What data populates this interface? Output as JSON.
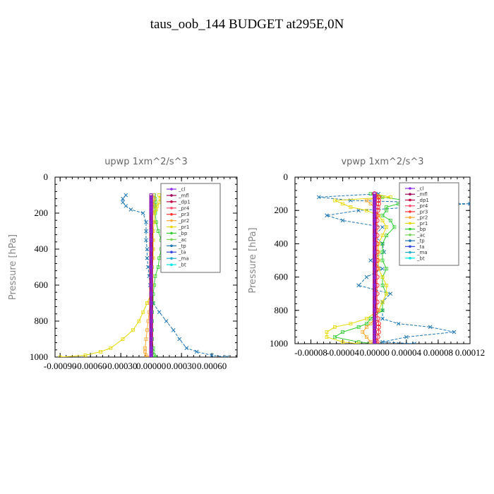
{
  "title": "taus_oob_144  BUDGET at295E,0N",
  "chart_data": [
    {
      "type": "line",
      "title": "upwp   1xm^2/s^3",
      "ylabel": "Pressure [hPa]",
      "xlabel": "",
      "xlim": [
        -0.00095,
        0.00085
      ],
      "ylim": [
        1000,
        0
      ],
      "xticks": [
        "-0.00090",
        "-0.00060",
        "-0.00030",
        "0.00000",
        "0.00030",
        "0.00060"
      ],
      "xtick_values": [
        -0.0009,
        -0.0006,
        -0.0003,
        0,
        0.0003,
        0.0006
      ],
      "yticks": [
        "0",
        "200",
        "400",
        "600",
        "800",
        "1000"
      ],
      "ytick_values": [
        0,
        200,
        400,
        600,
        800,
        1000
      ],
      "legend": [
        "_cl",
        "_mfl",
        "_dp1",
        "_pr4",
        "_pr3",
        "_pr2",
        "_pr1",
        "_bp",
        "_ac",
        "_tp",
        "_ta",
        "_ma",
        "_bt"
      ],
      "legend_placement": "top-right",
      "p": [
        100,
        120,
        140,
        160,
        180,
        200,
        250,
        300,
        350,
        400,
        450,
        500,
        550,
        600,
        650,
        700,
        750,
        800,
        850,
        900,
        950,
        970,
        990,
        1000
      ],
      "series": [
        {
          "name": "_tp",
          "color": "#1f77b4",
          "values": [
            -0.00025,
            -0.00028,
            -0.00028,
            -0.00025,
            -0.0002,
            -8e-05,
            -5e-05,
            -5e-05,
            -5e-05,
            -4e-05,
            -4e-05,
            -3e-05,
            -2e-05,
            -1e-05,
            0,
            2e-05,
            8e-05,
            0.00015,
            0.00022,
            0.00028,
            0.00035,
            0.00045,
            0.0006,
            0.00075
          ]
        },
        {
          "name": "_bp",
          "color": "#33cc33",
          "values": [
            3e-05,
            4e-05,
            4e-05,
            4e-05,
            4e-05,
            4e-05,
            5e-05,
            7e-05,
            0.0001,
            0.0001,
            8e-05,
            7e-05,
            4e-05,
            3e-05,
            2e-05,
            2e-05,
            1e-05,
            1e-05,
            1e-05,
            1e-05,
            2e-05,
            2e-05,
            3e-05,
            4e-05
          ]
        },
        {
          "name": "_pr1",
          "color": "#e8d800",
          "values": [
            8e-05,
            9e-05,
            8e-05,
            6e-05,
            5e-05,
            3e-05,
            3e-05,
            2e-05,
            2e-05,
            2e-05,
            2e-05,
            1e-05,
            1e-05,
            1e-05,
            0,
            -4e-05,
            -8e-05,
            -0.00012,
            -0.00018,
            -0.00028,
            -0.0004,
            -0.0005,
            -0.00065,
            -0.0009
          ]
        },
        {
          "name": "_pr2",
          "color": "#ffaa33",
          "values": [
            2e-05,
            3e-05,
            2e-05,
            2e-05,
            1e-05,
            1e-05,
            1e-05,
            1e-05,
            1e-05,
            1e-05,
            1e-05,
            0,
            0,
            0,
            0,
            -1e-05,
            -2e-05,
            -3e-05,
            -4e-05,
            -5e-05,
            -6e-05,
            -6e-05,
            -5e-05,
            -4e-05
          ]
        },
        {
          "name": "_mfl",
          "color": "#a0005a",
          "values": [
            0,
            0,
            0,
            0,
            0,
            0,
            0,
            0,
            0,
            0,
            0,
            0,
            0,
            0,
            0,
            0,
            0,
            0,
            0,
            0,
            0,
            0,
            0,
            0
          ]
        },
        {
          "name": "_cl",
          "color": "#8a2be2",
          "values": [
            0,
            0,
            0,
            0,
            0,
            0,
            0,
            0,
            0,
            0,
            0,
            0,
            0,
            0,
            0,
            0,
            0,
            0,
            0,
            0,
            0,
            0,
            0,
            0
          ]
        }
      ]
    },
    {
      "type": "line",
      "title": "vpwp   1xm^2/s^3",
      "ylabel": "Pressure [hPa]",
      "xlabel": "",
      "xlim": [
        -0.0001,
        0.00012
      ],
      "ylim": [
        1000,
        0
      ],
      "xticks": [
        "-0.00008",
        "-0.00004",
        "0.00000",
        "0.00004",
        "0.00008",
        "0.00012"
      ],
      "xtick_values": [
        -8e-05,
        -4e-05,
        0,
        4e-05,
        8e-05,
        0.00012
      ],
      "yticks": [
        "0",
        "200",
        "400",
        "600",
        "800",
        "1000"
      ],
      "ytick_values": [
        0,
        200,
        400,
        600,
        800,
        1000
      ],
      "legend": [
        "_cl",
        "_mfl",
        "_dp1",
        "_pr4",
        "_pr3",
        "_pr2",
        "_pr1",
        "_bp",
        "_ac",
        "_tp",
        "_ta",
        "_ma",
        "_bt"
      ],
      "legend_placement": "top-right",
      "p": [
        100,
        120,
        140,
        160,
        180,
        200,
        230,
        260,
        300,
        350,
        400,
        450,
        500,
        550,
        600,
        650,
        700,
        750,
        800,
        850,
        880,
        900,
        930,
        960,
        990,
        1000
      ],
      "series": [
        {
          "name": "_tp",
          "color": "#1f77b4",
          "values": [
            5e-06,
            -7e-05,
            -3e-05,
            0.00012,
            5e-05,
            -2e-05,
            -6e-05,
            -4e-05,
            1e-05,
            0,
            1e-05,
            1.2e-05,
            -5e-06,
            1e-05,
            -1e-05,
            -2e-05,
            2e-05,
            1e-05,
            1e-05,
            1e-05,
            3e-05,
            7e-05,
            0.0001,
            4e-05,
            1e-05,
            5e-05
          ]
        },
        {
          "name": "_bp",
          "color": "#33cc33",
          "values": [
            -5e-06,
            1e-05,
            4e-05,
            3e-05,
            1.5e-05,
            1.5e-05,
            1e-05,
            2e-05,
            2.5e-05,
            1.5e-05,
            1e-05,
            1e-05,
            1e-05,
            1.5e-05,
            1e-05,
            1e-05,
            1.5e-05,
            1e-05,
            1e-05,
            -5e-06,
            -1e-05,
            -2e-05,
            -4e-05,
            -5e-05,
            -2e-05,
            0
          ]
        },
        {
          "name": "_pr1",
          "color": "#e8d800",
          "values": [
            0,
            2e-05,
            -5e-05,
            -4e-05,
            -3e-05,
            -1e-05,
            5e-06,
            1e-05,
            1.5e-05,
            1e-05,
            5e-06,
            5e-06,
            5e-06,
            5e-06,
            1e-05,
            1.5e-05,
            1.5e-05,
            1e-05,
            5e-06,
            -1e-05,
            -3e-05,
            -5e-05,
            -6e-05,
            -6e-05,
            -4e-05,
            -2e-05
          ]
        },
        {
          "name": "_pr2",
          "color": "#ffaa33",
          "values": [
            0,
            5e-06,
            -1e-05,
            -5e-06,
            0,
            0,
            0,
            0,
            0,
            0,
            0,
            0,
            0,
            0,
            0,
            0,
            0,
            0,
            0,
            0,
            -5e-06,
            -1e-05,
            -1.5e-05,
            -1e-05,
            -5e-06,
            0
          ]
        },
        {
          "name": "_pr3",
          "color": "#ff3333",
          "values": [
            0,
            5e-06,
            5e-06,
            5e-06,
            4e-06,
            4e-06,
            3e-06,
            3e-06,
            3e-06,
            3e-06,
            3e-06,
            3e-06,
            3e-06,
            3e-06,
            3e-06,
            3e-06,
            3e-06,
            3e-06,
            3e-06,
            4e-06,
            5e-06,
            5e-06,
            5e-06,
            4e-06,
            3e-06,
            2e-06
          ]
        },
        {
          "name": "_mfl",
          "color": "#a0005a",
          "values": [
            0,
            0,
            0,
            0,
            0,
            0,
            0,
            0,
            0,
            0,
            0,
            0,
            0,
            0,
            0,
            0,
            0,
            0,
            0,
            0,
            0,
            0,
            0,
            0,
            0,
            0
          ]
        },
        {
          "name": "_cl",
          "color": "#8a2be2",
          "values": [
            0,
            0,
            0,
            0,
            0,
            0,
            0,
            0,
            0,
            0,
            0,
            0,
            0,
            0,
            0,
            0,
            0,
            0,
            0,
            0,
            0,
            0,
            0,
            0,
            0,
            0
          ]
        }
      ]
    }
  ],
  "legend_colors": {
    "_cl": "#8a2be2",
    "_mfl": "#a0005a",
    "_dp1": "#c00040",
    "_pr4": "#ff4d6d",
    "_pr3": "#ff3333",
    "_pr2": "#ffaa33",
    "_pr1": "#e8d800",
    "_bp": "#33cc33",
    "_ac": "#7bd35a",
    "_tp": "#1f77b4",
    "_ta": "#3344dd",
    "_ma": "#22aacc",
    "_bt": "#00e5e5"
  }
}
